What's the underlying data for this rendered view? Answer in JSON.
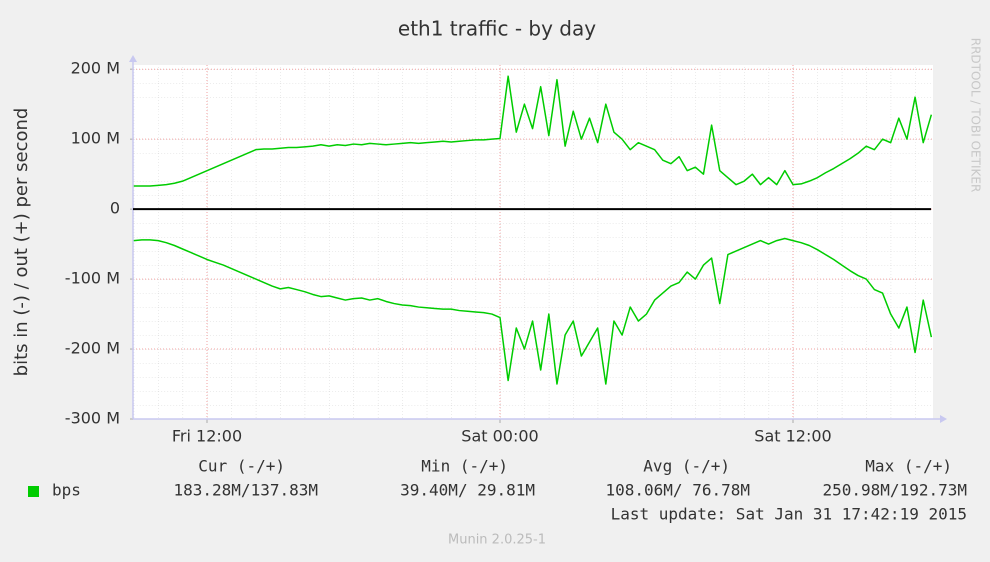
{
  "chart_data": {
    "type": "line",
    "title": "eth1 traffic - by day",
    "y_label": "bits in (-) / out (+) per second",
    "credit": "RRDTOOL / TOBI OETIKER",
    "categories": [
      null,
      null,
      null,
      null,
      null,
      null,
      null,
      null,
      null,
      "Fri 12:00",
      null,
      null,
      null,
      null,
      null,
      null,
      null,
      null,
      null,
      null,
      null,
      null,
      null,
      null,
      null,
      null,
      null,
      null,
      null,
      null,
      null,
      null,
      null,
      null,
      null,
      null,
      null,
      null,
      null,
      null,
      null,
      null,
      null,
      null,
      null,
      "Sat 00:00",
      null,
      null,
      null,
      null,
      null,
      null,
      null,
      null,
      null,
      null,
      null,
      null,
      null,
      null,
      null,
      null,
      null,
      null,
      null,
      null,
      null,
      null,
      null,
      null,
      null,
      null,
      null,
      null,
      null,
      null,
      null,
      null,
      null,
      null,
      null,
      "Sat 12:00",
      null,
      null,
      null,
      null,
      null,
      null,
      null,
      null,
      null,
      null,
      null,
      null,
      null,
      null,
      null,
      null,
      null
    ],
    "series": [
      {
        "name": "bps",
        "color": "#00cc00",
        "values": [
          33,
          33,
          33,
          34,
          35,
          37,
          40,
          45,
          50,
          55,
          60,
          65,
          70,
          75,
          80,
          85,
          86,
          86,
          87,
          88,
          88,
          89,
          90,
          92,
          90,
          92,
          91,
          93,
          92,
          94,
          93,
          92,
          93,
          94,
          95,
          94,
          95,
          96,
          97,
          96,
          97,
          98,
          99,
          99,
          100,
          101,
          190,
          110,
          150,
          115,
          175,
          105,
          185,
          90,
          140,
          100,
          130,
          95,
          150,
          110,
          100,
          85,
          95,
          90,
          85,
          70,
          65,
          75,
          55,
          60,
          50,
          120,
          55,
          45,
          35,
          40,
          50,
          35,
          45,
          35,
          55,
          35,
          36,
          40,
          45,
          52,
          58,
          65,
          72,
          80,
          90,
          85,
          100,
          95,
          130,
          100,
          160,
          95,
          135
        ],
        "stats": [
          "183.28M/137.83M",
          "39.40M/ 29.81M",
          "108.06M/ 76.78M",
          "250.98M/192.73M"
        ]
      },
      {
        "color": "#00cc00",
        "values": [
          -45,
          -44,
          -44,
          -45,
          -48,
          -52,
          -57,
          -62,
          -67,
          -72,
          -76,
          -80,
          -85,
          -90,
          -95,
          -100,
          -105,
          -110,
          -114,
          -112,
          -115,
          -118,
          -122,
          -125,
          -124,
          -127,
          -130,
          -128,
          -127,
          -130,
          -128,
          -132,
          -135,
          -137,
          -138,
          -140,
          -141,
          -142,
          -143,
          -143,
          -145,
          -146,
          -147,
          -148,
          -150,
          -155,
          -245,
          -170,
          -200,
          -160,
          -230,
          -150,
          -250,
          -180,
          -160,
          -210,
          -190,
          -170,
          -250,
          -160,
          -180,
          -140,
          -160,
          -150,
          -130,
          -120,
          -110,
          -105,
          -90,
          -100,
          -80,
          -70,
          -135,
          -65,
          -60,
          -55,
          -50,
          -45,
          -50,
          -45,
          -42,
          -45,
          -48,
          -52,
          -58,
          -65,
          -72,
          -80,
          -88,
          -95,
          -100,
          -115,
          -120,
          -150,
          -170,
          -140,
          -205,
          -130,
          -183
        ]
      }
    ],
    "ylim": [
      -300,
      206
    ],
    "yticks": [
      {
        "value": -300,
        "label": "-300 M"
      },
      {
        "value": -200,
        "label": "-200 M"
      },
      {
        "value": -100,
        "label": "-100 M"
      },
      0,
      {
        "value": 100,
        "label": "100 M"
      },
      {
        "value": 200,
        "label": "200 M"
      }
    ],
    "grid": true,
    "stats_headers": [
      "Cur (-/+)",
      "Min (-/+)",
      "Avg (-/+)",
      "Max (-/+)"
    ],
    "last_update": "Last update: Sat Jan 31 17:42:19 2015",
    "generator": "Munin 2.0.25-1"
  }
}
